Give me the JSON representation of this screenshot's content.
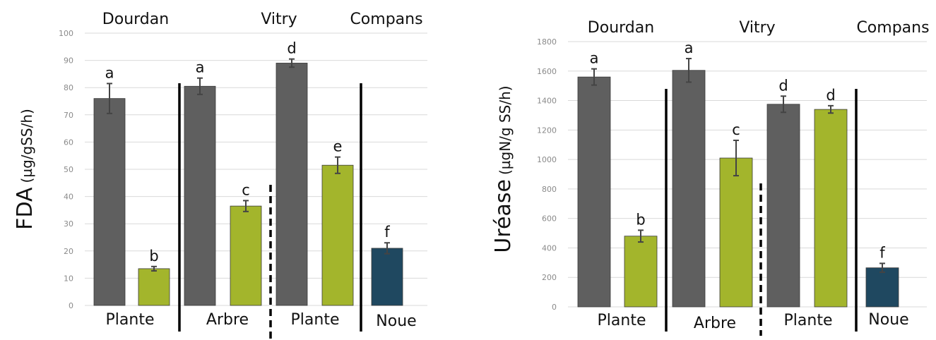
{
  "colors": {
    "dark_grey": "#5f5f5f",
    "olive_green": "#a3b52c",
    "navy": "#1f4860",
    "grid": "#d9d9d9"
  },
  "chart_data": [
    {
      "type": "bar",
      "ylabel_main": "FDA",
      "ylabel_unit": "(µg/gSS/h)",
      "ylim": [
        0,
        100
      ],
      "yticks": [
        "0",
        "10",
        "20",
        "30",
        "40",
        "50",
        "60",
        "70",
        "80",
        "90",
        "100"
      ],
      "grid": true,
      "sites": [
        "Dourdan",
        "Vitry",
        "Compans"
      ],
      "groups": [
        "Plante",
        "Arbre",
        "Plante",
        "Noue"
      ],
      "bars": [
        {
          "value": 76,
          "error": 5.5,
          "letter": "a",
          "color": "dark_grey"
        },
        {
          "value": 13.5,
          "error": 0.8,
          "letter": "b",
          "color": "olive_green"
        },
        {
          "value": 80.5,
          "error": 3,
          "letter": "a",
          "color": "dark_grey"
        },
        {
          "value": 36.5,
          "error": 2,
          "letter": "c",
          "color": "olive_green"
        },
        {
          "value": 89,
          "error": 1.5,
          "letter": "d",
          "color": "dark_grey"
        },
        {
          "value": 51.5,
          "error": 3,
          "letter": "e",
          "color": "olive_green"
        },
        {
          "value": 21,
          "error": 2,
          "letter": "f",
          "color": "navy"
        }
      ]
    },
    {
      "type": "bar",
      "ylabel_main": "Uréase",
      "ylabel_unit": "(µgN/g SS/h)",
      "ylim": [
        0,
        1800
      ],
      "yticks": [
        "0",
        "200",
        "400",
        "600",
        "800",
        "1000",
        "1200",
        "1400",
        "1600",
        "1800"
      ],
      "grid": true,
      "sites": [
        "Dourdan",
        "Vitry",
        "Compans"
      ],
      "groups": [
        "Plante",
        "Arbre",
        "Plante",
        "Noue"
      ],
      "bars": [
        {
          "value": 1560,
          "error": 55,
          "letter": "a",
          "color": "dark_grey"
        },
        {
          "value": 480,
          "error": 40,
          "letter": "b",
          "color": "olive_green"
        },
        {
          "value": 1605,
          "error": 80,
          "letter": "a",
          "color": "dark_grey"
        },
        {
          "value": 1010,
          "error": 120,
          "letter": "c",
          "color": "olive_green"
        },
        {
          "value": 1375,
          "error": 55,
          "letter": "d",
          "color": "dark_grey"
        },
        {
          "value": 1340,
          "error": 25,
          "letter": "d",
          "color": "olive_green"
        },
        {
          "value": 265,
          "error": 30,
          "letter": "f",
          "color": "navy"
        }
      ]
    }
  ]
}
